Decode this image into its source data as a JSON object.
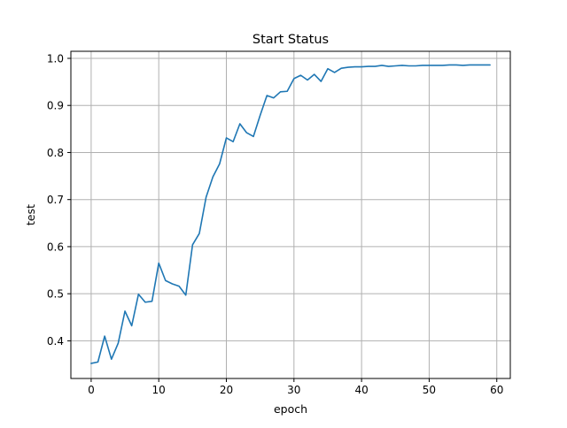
{
  "chart_data": {
    "type": "line",
    "title": "Start Status",
    "xlabel": "epoch",
    "ylabel": "test",
    "xlim": [
      -3,
      62
    ],
    "ylim": [
      0.32,
      1.015
    ],
    "xticks": [
      0,
      10,
      20,
      30,
      40,
      50,
      60
    ],
    "xtick_labels": [
      "0",
      "10",
      "20",
      "30",
      "40",
      "50",
      "60"
    ],
    "yticks": [
      0.4,
      0.5,
      0.6,
      0.7,
      0.8,
      0.9,
      1.0
    ],
    "ytick_labels": [
      "0.4",
      "0.5",
      "0.6",
      "0.7",
      "0.8",
      "0.9",
      "1.0"
    ],
    "grid": true,
    "legend": "none",
    "line_color": "#1f77b4",
    "series": [
      {
        "x": [
          0,
          1,
          2,
          3,
          4,
          5,
          6,
          7,
          8,
          9,
          10,
          11,
          12,
          13,
          14,
          15,
          16,
          17,
          18,
          19,
          20,
          21,
          22,
          23,
          24,
          25,
          26,
          27,
          28,
          29,
          30,
          31,
          32,
          33,
          34,
          35,
          36,
          37,
          38,
          39,
          40,
          41,
          42,
          43,
          44,
          45,
          46,
          47,
          48,
          49,
          50,
          51,
          52,
          53,
          54,
          55,
          56,
          57,
          58,
          59
        ],
        "values": [
          0.352,
          0.355,
          0.41,
          0.361,
          0.395,
          0.463,
          0.432,
          0.499,
          0.482,
          0.484,
          0.565,
          0.528,
          0.521,
          0.516,
          0.497,
          0.604,
          0.628,
          0.705,
          0.748,
          0.776,
          0.831,
          0.823,
          0.861,
          0.842,
          0.834,
          0.879,
          0.921,
          0.916,
          0.929,
          0.93,
          0.957,
          0.964,
          0.954,
          0.966,
          0.951,
          0.978,
          0.97,
          0.979,
          0.981,
          0.982,
          0.982,
          0.983,
          0.983,
          0.985,
          0.983,
          0.984,
          0.985,
          0.984,
          0.984,
          0.985,
          0.985,
          0.985,
          0.985,
          0.986,
          0.986,
          0.985,
          0.986,
          0.986,
          0.986,
          0.986
        ]
      }
    ]
  }
}
